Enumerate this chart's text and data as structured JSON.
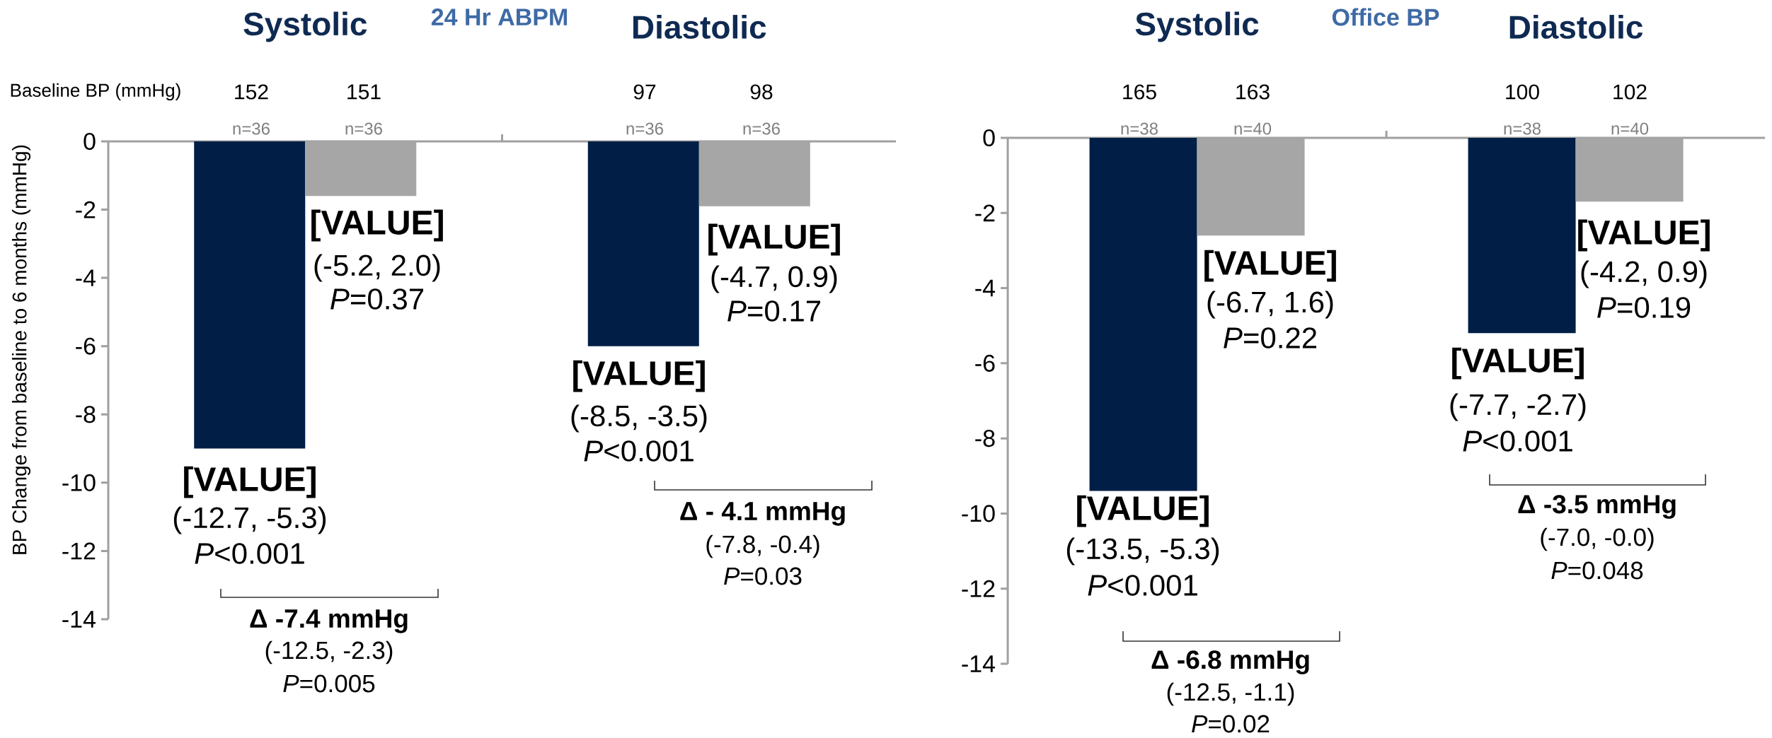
{
  "chart_data": [
    {
      "type": "bar",
      "title": "24 Hr ABPM",
      "ylabel": "BP Change from baseline to 6 months (mmHg)",
      "categories": [
        "Systolic",
        "Diastolic"
      ],
      "series": [
        {
          "color": "#001e46",
          "values": [
            -9.0,
            -6.0
          ],
          "value_labels": [
            "[VALUE]",
            "[VALUE]"
          ]
        },
        {
          "color": "#a6a6a6",
          "values": [
            -1.6,
            -1.9
          ],
          "value_labels": [
            "[VALUE]",
            "[VALUE]"
          ]
        }
      ],
      "ylim": [
        -14,
        0
      ],
      "yticks": [
        -14,
        -12,
        -10,
        -8,
        -6,
        -4,
        -2,
        0
      ],
      "annotations": [
        "Baseline BP (mmHg)",
        "152",
        "151",
        "97",
        "98",
        "n=36",
        "n=36",
        "n=36",
        "n=36",
        "(-12.7, -5.3)",
        "*P*<0.001",
        "(-5.2, 2.0)",
        "*P*=0.37",
        "(-8.5, -3.5)",
        "*P*<0.001",
        "(-4.7, 0.9)",
        "*P*=0.17",
        "Δ -7.4 mmHg",
        "(-12.5, -2.3)",
        "*P*=0.005",
        "Δ - 4.1 mmHg",
        "(-7.8, -0.4)",
        "*P*=0.03"
      ]
    },
    {
      "type": "bar",
      "title": "Office BP",
      "categories": [
        "Systolic",
        "Diastolic"
      ],
      "series": [
        {
          "color": "#001e46",
          "values": [
            -9.4,
            -5.2
          ],
          "value_labels": [
            "[VALUE]",
            "[VALUE]"
          ]
        },
        {
          "color": "#a6a6a6",
          "values": [
            -2.6,
            -1.7
          ],
          "value_labels": [
            "[VALUE]",
            "[VALUE]"
          ]
        }
      ],
      "ylim": [
        -14,
        0
      ],
      "yticks": [
        -14,
        -12,
        -10,
        -8,
        -6,
        -4,
        -2,
        0
      ],
      "annotations": [
        "165",
        "163",
        "100",
        "102",
        "n=38",
        "n=40",
        "n=38",
        "n=40",
        "(-13.5, -5.3)",
        "*P*<0.001",
        "(-6.7, 1.6)",
        "*P*=0.22",
        "(-7.7, -2.7)",
        "*P*<0.001",
        "(-4.2, 0.9)",
        "*P*=0.19",
        "Δ -6.8 mmHg",
        "(-12.5, -1.1)",
        "*P*=0.02",
        "Δ -3.5 mmHg",
        "(-7.0, -0.0)",
        "*P*=0.048"
      ]
    }
  ]
}
